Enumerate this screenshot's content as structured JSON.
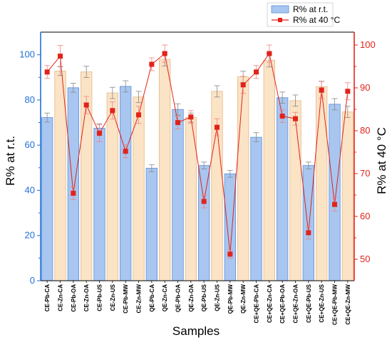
{
  "chart_data": {
    "type": "bar+line",
    "categories": [
      "CE-Pb-CA",
      "CE-Zn-CA",
      "CE-Pb-OA",
      "CE-Zn-OA",
      "CE-Pb-US",
      "CE-Zn-US",
      "CE-Pb-MW",
      "CE-Zn-MW",
      "QE-Pb-CA",
      "QE-Zn-CA",
      "QE-Pb-OA",
      "QE-Zn-OA",
      "QE-Pb-US",
      "QE-Zn-US",
      "QE-Pb-MW",
      "QE-Zn-MW",
      "CE+QE-Pb-CA",
      "CE+QE-Zn-CA",
      "CE+QE-Pb-OA",
      "CE+QE-Zn-OA",
      "CE+QE-Pb-US",
      "CE+QE-Zn-US",
      "CE+QE-Pb-MW",
      "CE+QE-Zn-MW"
    ],
    "xlabel": "Samples",
    "ylabel_left": "R% at r.t.",
    "ylabel_right": "R% at 40 °C",
    "ylim_left": [
      0,
      110
    ],
    "ylim_right": [
      45,
      103
    ],
    "yticks_left": [
      0,
      20,
      40,
      60,
      80,
      100
    ],
    "yticks_right": [
      50,
      60,
      70,
      80,
      90,
      100
    ],
    "series": [
      {
        "name": "R% at r.t.",
        "type": "bar",
        "axis": "left",
        "values": [
          72.2,
          92.8,
          85.4,
          92.4,
          67.5,
          83.1,
          86.0,
          81.3,
          49.8,
          98.0,
          75.8,
          72.2,
          51.0,
          83.8,
          47.3,
          90.2,
          63.5,
          97.6,
          81.0,
          79.7,
          51.0,
          85.8,
          78.1,
          74.7
        ],
        "errors": [
          2.0,
          2.0,
          2.0,
          2.5,
          2.0,
          2.5,
          2.5,
          2.5,
          1.5,
          3.0,
          2.5,
          2.0,
          1.5,
          2.5,
          1.5,
          2.5,
          2.0,
          3.0,
          2.5,
          2.5,
          1.5,
          2.5,
          2.5,
          2.5
        ]
      },
      {
        "name": "R% at 40 °C",
        "type": "line",
        "axis": "right",
        "values": [
          93.7,
          97.4,
          65.4,
          86.0,
          79.4,
          84.7,
          75.2,
          83.7,
          95.5,
          98.0,
          81.9,
          83.2,
          63.5,
          80.8,
          51.2,
          90.7,
          93.7,
          98.0,
          83.4,
          82.8,
          56.2,
          89.5,
          62.8,
          89.2
        ],
        "errors": [
          1.5,
          2.5,
          1.5,
          2.0,
          2.0,
          2.0,
          1.5,
          2.0,
          1.5,
          2.0,
          1.5,
          1.5,
          1.5,
          2.0,
          1.0,
          2.0,
          1.5,
          2.0,
          1.5,
          1.5,
          1.5,
          2.0,
          1.5,
          2.0
        ]
      }
    ],
    "legend": {
      "position": "top-right",
      "entries": [
        "R% at r.t.",
        "R% at 40 °C"
      ]
    },
    "grid": false,
    "colors": {
      "bar_blue_fill": "#a8c6f0",
      "bar_blue_edge": "#5c8fd8",
      "bar_orange_fill": "#fbe3c5",
      "bar_orange_edge": "#e3b98a",
      "line_red": "#e2231a",
      "left_axis": "#1f6fd6",
      "right_axis": "#e2231a",
      "error_bar": "#888888"
    }
  }
}
